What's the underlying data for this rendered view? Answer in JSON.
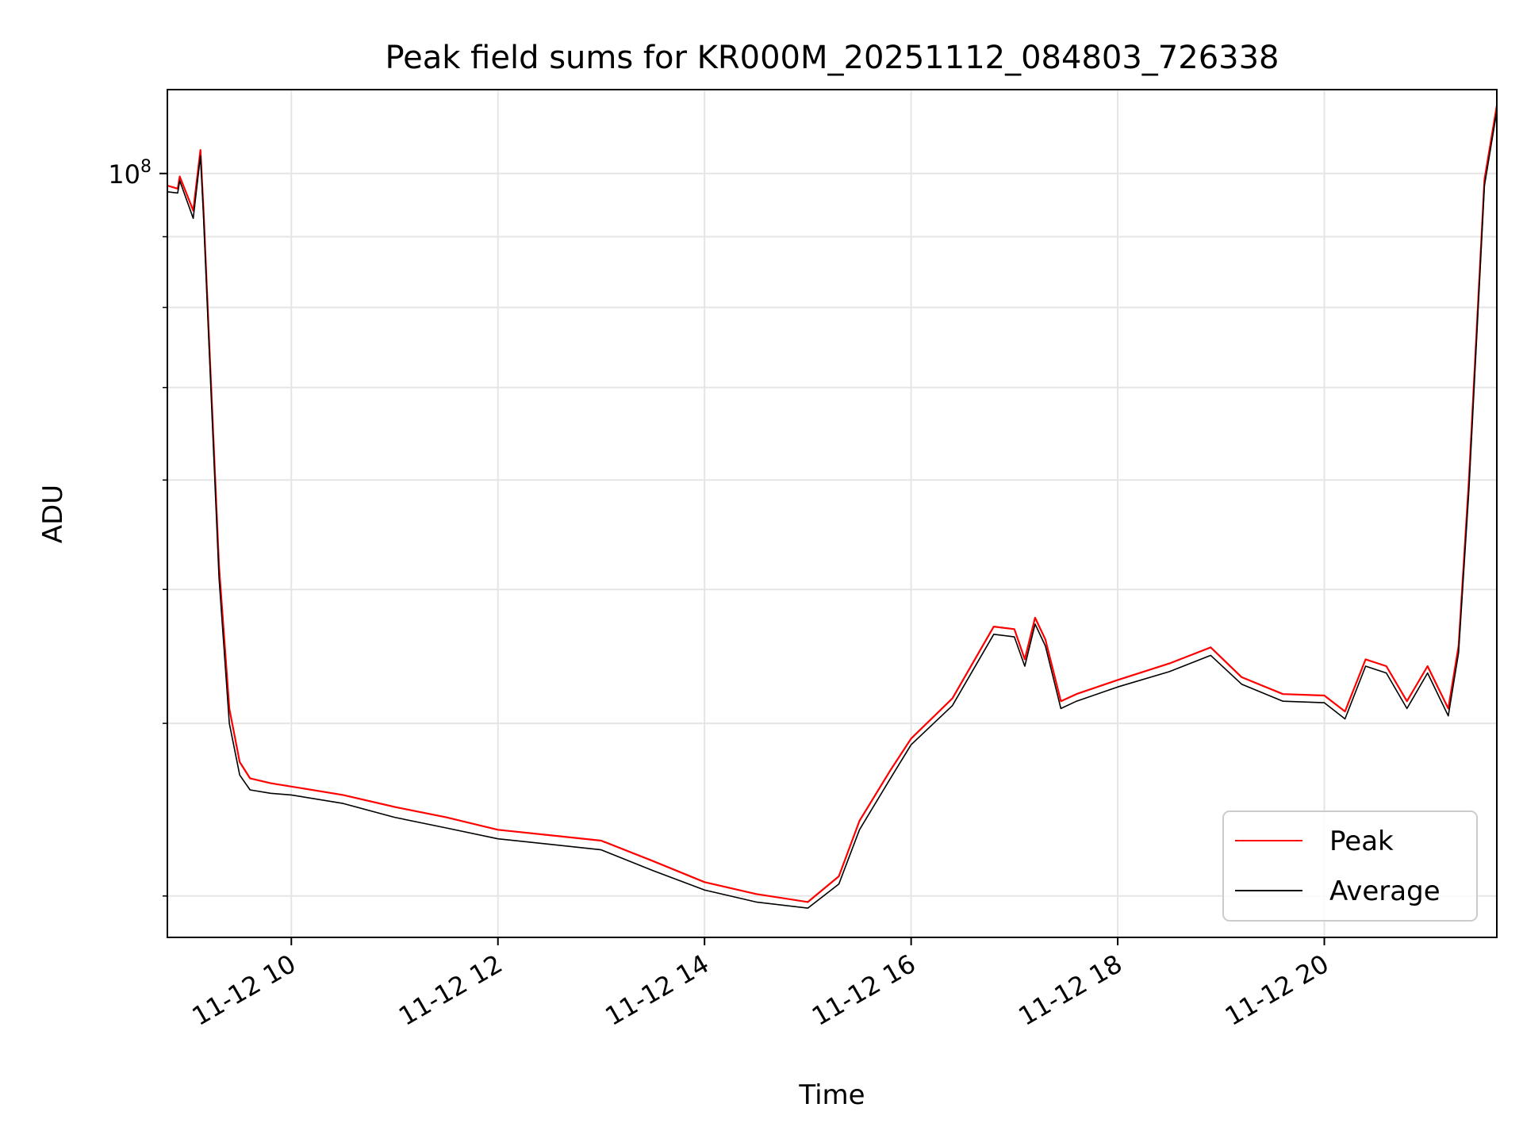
{
  "chart_data": {
    "type": "line",
    "title": "Peak field sums for KR000M_20251112_084803_726338",
    "xlabel": "Time",
    "ylabel": "ADU",
    "yscale": "log",
    "ylim": [
      28000000,
      115000000
    ],
    "xlim_hours": [
      8.8,
      21.67
    ],
    "grid": true,
    "grid_minor_y": true,
    "legend_position": "lower right",
    "x_ticks": [
      {
        "hour": 10,
        "label": "11-12 10"
      },
      {
        "hour": 12,
        "label": "11-12 12"
      },
      {
        "hour": 14,
        "label": "11-12 14"
      },
      {
        "hour": 16,
        "label": "11-12 16"
      },
      {
        "hour": 18,
        "label": "11-12 18"
      },
      {
        "hour": 20,
        "label": "11-12 20"
      }
    ],
    "y_major_ticks": [
      {
        "value": 100000000,
        "label_base": "10",
        "label_exp": "8"
      }
    ],
    "y_minor_ticks": [
      30000000,
      40000000,
      50000000,
      60000000,
      70000000,
      80000000,
      90000000
    ],
    "series": [
      {
        "name": "Peak",
        "color": "#ff0000",
        "x_hours": [
          8.8,
          8.9,
          8.92,
          9.05,
          9.12,
          9.15,
          9.2,
          9.3,
          9.4,
          9.5,
          9.6,
          9.8,
          10.0,
          10.5,
          11.0,
          11.5,
          12.0,
          12.5,
          13.0,
          13.5,
          14.0,
          14.5,
          15.0,
          15.3,
          15.5,
          15.8,
          16.0,
          16.4,
          16.8,
          17.0,
          17.1,
          17.2,
          17.3,
          17.45,
          17.6,
          18.0,
          18.5,
          18.9,
          19.2,
          19.6,
          20.0,
          20.2,
          20.4,
          20.6,
          20.8,
          21.0,
          21.2,
          21.3,
          21.4,
          21.55,
          21.67
        ],
        "values": [
          98000000,
          97500000,
          99500000,
          94000000,
          104000000,
          94000000,
          77000000,
          52000000,
          41000000,
          37500000,
          36500000,
          36200000,
          36000000,
          35500000,
          34800000,
          34200000,
          33500000,
          33200000,
          32900000,
          31800000,
          30700000,
          30100000,
          29700000,
          31000000,
          34000000,
          37000000,
          39000000,
          41700000,
          47000000,
          46800000,
          44500000,
          47700000,
          46000000,
          41500000,
          42000000,
          43000000,
          44200000,
          45400000,
          43200000,
          42000000,
          41900000,
          40800000,
          44500000,
          44000000,
          41500000,
          44000000,
          41000000,
          45500000,
          60000000,
          99000000,
          112000000
        ]
      },
      {
        "name": "Average",
        "color": "#000000",
        "x_hours": [
          8.8,
          8.9,
          8.92,
          9.05,
          9.12,
          9.15,
          9.2,
          9.3,
          9.4,
          9.5,
          9.6,
          9.8,
          10.0,
          10.5,
          11.0,
          11.5,
          12.0,
          12.5,
          13.0,
          13.5,
          14.0,
          14.5,
          15.0,
          15.3,
          15.5,
          15.8,
          16.0,
          16.4,
          16.8,
          17.0,
          17.1,
          17.2,
          17.3,
          17.45,
          17.6,
          18.0,
          18.5,
          18.9,
          19.2,
          19.6,
          20.0,
          20.2,
          20.4,
          20.6,
          20.8,
          21.0,
          21.2,
          21.3,
          21.4,
          21.55,
          21.67
        ],
        "values": [
          97000000,
          96800000,
          98800000,
          92800000,
          103000000,
          93000000,
          76000000,
          51000000,
          40000000,
          36700000,
          35800000,
          35600000,
          35500000,
          35000000,
          34200000,
          33600000,
          33000000,
          32700000,
          32400000,
          31300000,
          30300000,
          29700000,
          29400000,
          30600000,
          33500000,
          36500000,
          38600000,
          41200000,
          46400000,
          46200000,
          44000000,
          47200000,
          45500000,
          41000000,
          41500000,
          42500000,
          43600000,
          44800000,
          42700000,
          41500000,
          41400000,
          40300000,
          44000000,
          43500000,
          41000000,
          43500000,
          40500000,
          45000000,
          59000000,
          98000000,
          111000000
        ]
      }
    ]
  }
}
